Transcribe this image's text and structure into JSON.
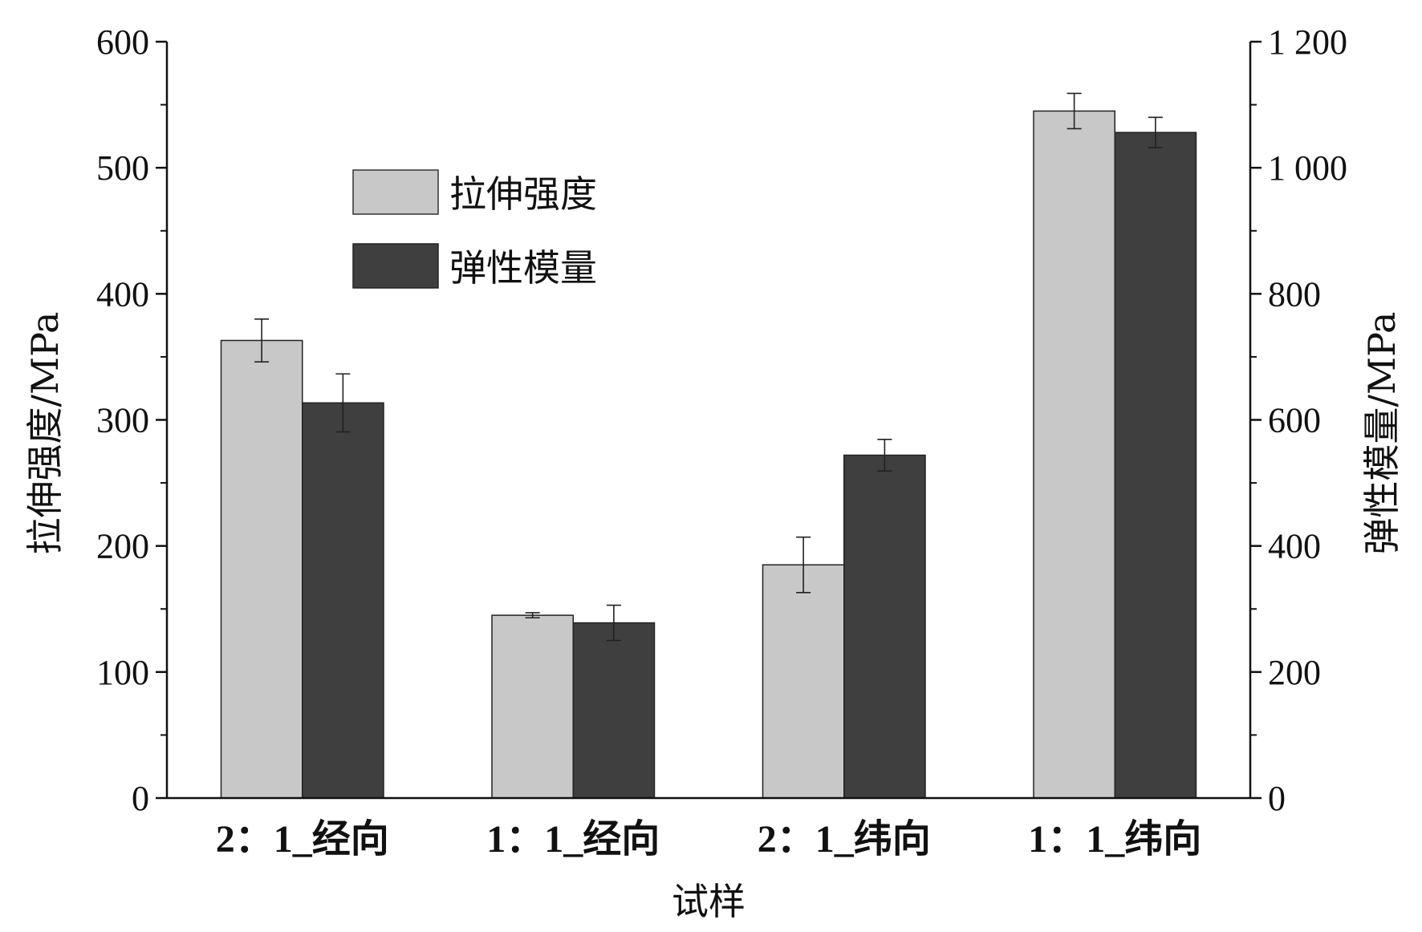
{
  "chart_data": {
    "type": "bar",
    "categories": [
      "2：1_经向",
      "1：1_经向",
      "2：1_纬向",
      "1：1_纬向"
    ],
    "xlabel": "试样",
    "series": [
      {
        "name": "拉伸强度",
        "axis": "left",
        "color": "#c8c8c8",
        "values": [
          363,
          145,
          185,
          545
        ],
        "errors": [
          17,
          2,
          22,
          14
        ]
      },
      {
        "name": "弹性模量",
        "axis": "right",
        "color": "#3f3f3f",
        "values": [
          627,
          278,
          544,
          1056
        ],
        "errors": [
          46,
          28,
          25,
          24
        ]
      }
    ],
    "y_left": {
      "label": "拉伸强度/MPa",
      "ylim": [
        0,
        600
      ],
      "ticks": [
        0,
        100,
        200,
        300,
        400,
        500,
        600
      ],
      "tick_labels": [
        "0",
        "100",
        "200",
        "300",
        "400",
        "500",
        "600"
      ]
    },
    "y_right": {
      "label": "弹性模量/MPa",
      "ylim": [
        0,
        1200
      ],
      "ticks": [
        0,
        200,
        400,
        600,
        800,
        1000,
        1200
      ],
      "tick_labels": [
        "0",
        "200",
        "400",
        "600",
        "800",
        "1 000",
        "1 200"
      ]
    },
    "legend_position": "upper-left",
    "grid": false
  }
}
